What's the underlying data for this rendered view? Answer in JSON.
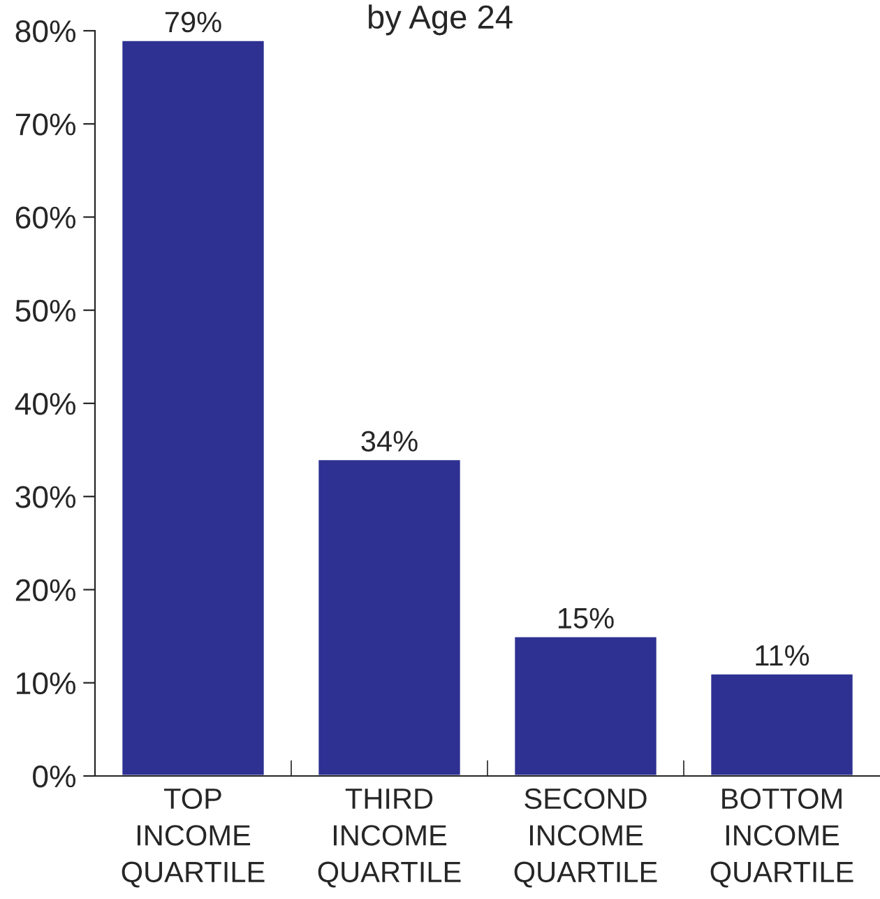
{
  "chart_data": {
    "type": "bar",
    "title": "by Age 24",
    "categories": [
      "TOP\nINCOME\nQUARTILE",
      "THIRD\nINCOME\nQUARTILE",
      "SECOND\nINCOME\nQUARTILE",
      "BOTTOM\nINCOME\nQUARTILE"
    ],
    "values": [
      79,
      34,
      15,
      11
    ],
    "value_labels": [
      "79%",
      "34%",
      "15%",
      "11%"
    ],
    "color": "#2e3192",
    "ylim": [
      0,
      80
    ],
    "yticks": [
      {
        "value": 0,
        "label": "0%"
      },
      {
        "value": 10,
        "label": "10%"
      },
      {
        "value": 20,
        "label": "20%"
      },
      {
        "value": 30,
        "label": "30%"
      },
      {
        "value": 40,
        "label": "40%"
      },
      {
        "value": 50,
        "label": "50%"
      },
      {
        "value": 60,
        "label": "60%"
      },
      {
        "value": 70,
        "label": "70%"
      },
      {
        "value": 80,
        "label": "80%"
      }
    ],
    "grid": false,
    "legend": false
  }
}
